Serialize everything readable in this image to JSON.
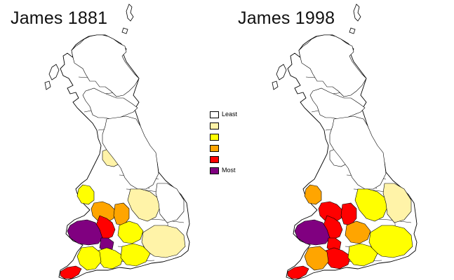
{
  "titles": {
    "left": "James 1881",
    "right": "James 1998"
  },
  "legend": [
    {
      "label": "Least",
      "color": "#ffffff"
    },
    {
      "label": "",
      "color": "#fff3a8"
    },
    {
      "label": "",
      "color": "#ffff00"
    },
    {
      "label": "",
      "color": "#ffa500"
    },
    {
      "label": "",
      "color": "#ff0000"
    },
    {
      "label": "Most",
      "color": "#800080"
    }
  ],
  "maps": [
    {
      "year": "1881",
      "regions": [
        {
          "area": "scotland-north",
          "level": 0
        },
        {
          "area": "scotland-south",
          "level": 0
        },
        {
          "area": "cumbria",
          "level": 1
        },
        {
          "area": "northern-england",
          "level": 0
        },
        {
          "area": "north-wales",
          "level": 2
        },
        {
          "area": "mid-wales-east",
          "level": 3
        },
        {
          "area": "wales-central",
          "level": 4
        },
        {
          "area": "south-west-wales",
          "level": 5
        },
        {
          "area": "south-wales-east",
          "level": 5
        },
        {
          "area": "welsh-border",
          "level": 3
        },
        {
          "area": "west-midlands",
          "level": 2
        },
        {
          "area": "midlands-east",
          "level": 1
        },
        {
          "area": "east-anglia",
          "level": 0
        },
        {
          "area": "south-east",
          "level": 1
        },
        {
          "area": "somerset",
          "level": 2
        },
        {
          "area": "devon",
          "level": 2
        },
        {
          "area": "cornwall",
          "level": 4
        },
        {
          "area": "wessex",
          "level": 2
        }
      ]
    },
    {
      "year": "1998",
      "regions": [
        {
          "area": "scotland-north",
          "level": 0
        },
        {
          "area": "scotland-south",
          "level": 0
        },
        {
          "area": "cumbria",
          "level": 0
        },
        {
          "area": "northern-england",
          "level": 0
        },
        {
          "area": "north-wales",
          "level": 3
        },
        {
          "area": "mid-wales-east",
          "level": 4
        },
        {
          "area": "wales-central",
          "level": 4
        },
        {
          "area": "south-west-wales",
          "level": 5
        },
        {
          "area": "south-wales-east",
          "level": 4
        },
        {
          "area": "welsh-border",
          "level": 4
        },
        {
          "area": "west-midlands",
          "level": 3
        },
        {
          "area": "midlands-east",
          "level": 2
        },
        {
          "area": "east-anglia",
          "level": 1
        },
        {
          "area": "south-east",
          "level": 2
        },
        {
          "area": "somerset",
          "level": 4
        },
        {
          "area": "devon",
          "level": 3
        },
        {
          "area": "cornwall",
          "level": 4
        },
        {
          "area": "wessex",
          "level": 2
        }
      ]
    }
  ]
}
